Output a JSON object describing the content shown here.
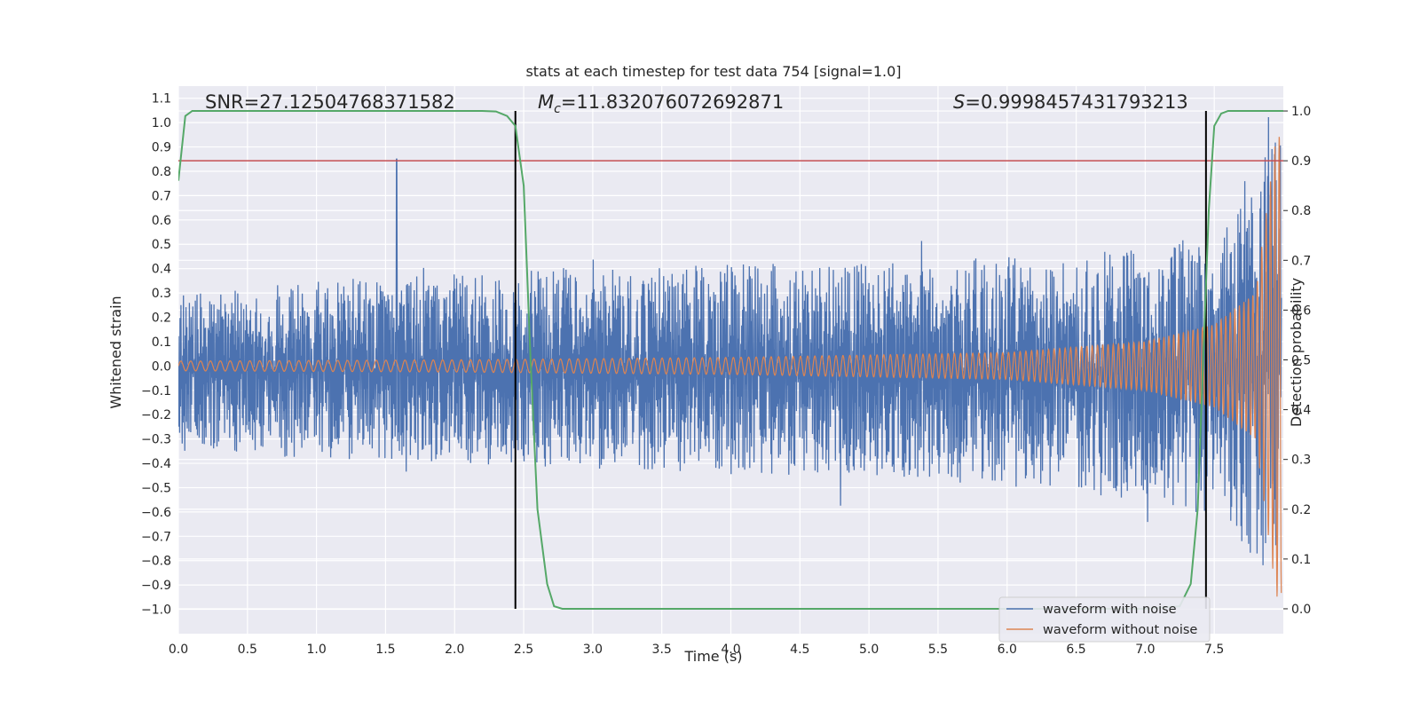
{
  "chart_data": {
    "type": "line",
    "title": "stats at each timestep for test data 754 [signal=1.0]",
    "xlabel": "Time (s)",
    "ylabel_left": "Whitened strain",
    "ylabel_right": "Detection probability",
    "xlim": [
      0.0,
      8.0
    ],
    "ylim_left": [
      -1.1,
      1.15
    ],
    "ylim_right": [
      -0.05,
      1.05
    ],
    "x_ticks": [
      "0.0",
      "0.5",
      "1.0",
      "1.5",
      "2.0",
      "2.5",
      "3.0",
      "3.5",
      "4.0",
      "4.5",
      "5.0",
      "5.5",
      "6.0",
      "6.5",
      "7.0",
      "7.5"
    ],
    "y_ticks_left": [
      "1.1",
      "1.0",
      "0.9",
      "0.8",
      "0.7",
      "0.6",
      "0.5",
      "0.4",
      "0.3",
      "0.2",
      "0.1",
      "0.0",
      "−0.1",
      "−0.2",
      "−0.3",
      "−0.4",
      "−0.5",
      "−0.6",
      "−0.7",
      "−0.8",
      "−0.9",
      "−1.0"
    ],
    "y_ticks_right": [
      "1.0",
      "0.9",
      "0.8",
      "0.7",
      "0.6",
      "0.5",
      "0.4",
      "0.3",
      "0.2",
      "0.1",
      "0.0"
    ],
    "grid": true,
    "legend_position": "lower-right",
    "annotations": {
      "snr": "SNR=27.12504768371582",
      "mc_symbol": "M",
      "mc_sub": "c",
      "mc_value": "=11.832076072692871",
      "s_symbol": "S",
      "s_value": "=0.9998457431793213"
    },
    "threshold_right": 0.9,
    "vertical_markers_x": [
      2.44,
      7.44
    ],
    "series": [
      {
        "name": "waveform with noise",
        "color": "#4c72b0",
        "axis": "left",
        "description_values": "dense noisy strain, mostly within ±0.4 with peaks to about 0.85 near t=1.58 and about 1.0 near t=7.96",
        "envelope_top": [
          [
            0.0,
            0.3
          ],
          [
            1.0,
            0.35
          ],
          [
            2.0,
            0.38
          ],
          [
            3.0,
            0.4
          ],
          [
            4.0,
            0.42
          ],
          [
            5.0,
            0.42
          ],
          [
            6.0,
            0.45
          ],
          [
            7.0,
            0.48
          ],
          [
            7.5,
            0.55
          ],
          [
            7.96,
            1.0
          ]
        ],
        "envelope_bottom": [
          [
            0.0,
            -0.35
          ],
          [
            1.0,
            -0.38
          ],
          [
            2.0,
            -0.4
          ],
          [
            3.0,
            -0.42
          ],
          [
            4.0,
            -0.45
          ],
          [
            5.0,
            -0.45
          ],
          [
            6.0,
            -0.5
          ],
          [
            7.0,
            -0.55
          ],
          [
            7.5,
            -0.62
          ],
          [
            7.96,
            -0.88
          ]
        ]
      },
      {
        "name": "waveform without noise",
        "color": "#dd8452",
        "axis": "left",
        "amplitude_points": [
          [
            0.0,
            0.02
          ],
          [
            2.0,
            0.025
          ],
          [
            4.0,
            0.035
          ],
          [
            6.0,
            0.055
          ],
          [
            7.0,
            0.1
          ],
          [
            7.5,
            0.17
          ],
          [
            7.8,
            0.3
          ],
          [
            7.95,
            0.95
          ]
        ]
      },
      {
        "name": "detection probability",
        "color": "#55a868",
        "axis": "right",
        "x": [
          0.0,
          0.05,
          0.1,
          0.2,
          0.5,
          1.0,
          1.5,
          2.0,
          2.2,
          2.3,
          2.38,
          2.44,
          2.5,
          2.55,
          2.6,
          2.67,
          2.72,
          2.78,
          2.85,
          3.0,
          3.5,
          4.0,
          5.0,
          6.0,
          7.0,
          7.25,
          7.33,
          7.38,
          7.42,
          7.46,
          7.5,
          7.55,
          7.6,
          8.0
        ],
        "y": [
          0.86,
          0.99,
          1.0,
          1.0,
          1.0,
          1.0,
          1.0,
          1.0,
          1.0,
          0.999,
          0.99,
          0.97,
          0.85,
          0.5,
          0.2,
          0.05,
          0.005,
          0.0,
          0.0,
          0.0,
          0.0,
          0.0,
          0.0,
          0.0,
          0.0,
          0.005,
          0.05,
          0.2,
          0.5,
          0.8,
          0.97,
          0.995,
          1.0,
          1.0
        ]
      }
    ]
  }
}
